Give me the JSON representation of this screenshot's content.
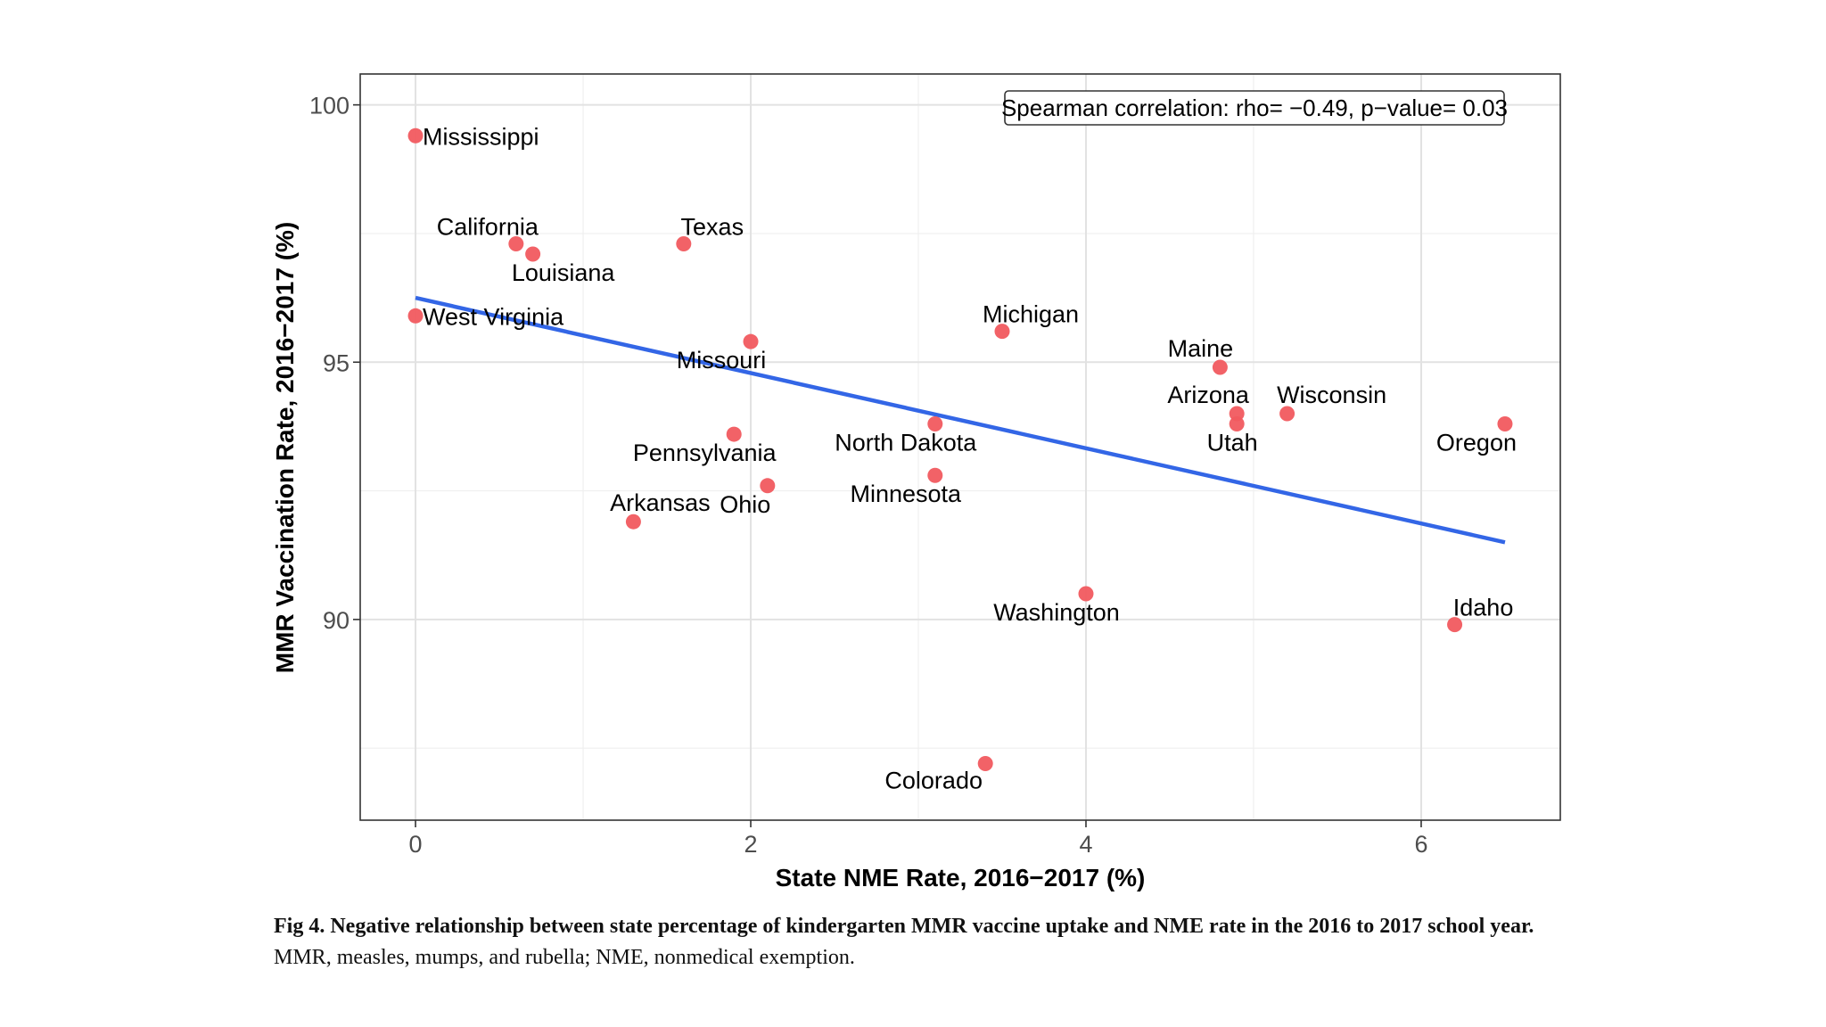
{
  "chart_data": {
    "type": "scatter",
    "xlabel": "State NME Rate, 2016−2017 (%)",
    "ylabel": "MMR Vaccination Rate, 2016−2017 (%)",
    "xlim": [
      -0.33,
      6.83
    ],
    "ylim": [
      86.1,
      100.6
    ],
    "x_ticks": [
      0,
      2,
      4,
      6
    ],
    "x_tick_labels": [
      "0",
      "2",
      "4",
      "6"
    ],
    "y_ticks": [
      90,
      95,
      100
    ],
    "y_tick_labels": [
      "90",
      "95",
      "100"
    ],
    "minor_y_gridlines": [
      87.5,
      92.5,
      97.5
    ],
    "minor_x_gridlines": [
      1,
      3,
      5
    ],
    "grid": true,
    "annotation": "Spearman correlation: rho= −0.49, p−value= 0.03",
    "annotation_position": "top-right",
    "point_color": "#f15a5f",
    "line_color": "#3366e6",
    "points": [
      {
        "name": "Mississippi",
        "x": 0.0,
        "y": 99.4
      },
      {
        "name": "California",
        "x": 0.6,
        "y": 97.3
      },
      {
        "name": "Louisiana",
        "x": 0.7,
        "y": 97.1
      },
      {
        "name": "Texas",
        "x": 1.6,
        "y": 97.3
      },
      {
        "name": "West Virginia",
        "x": 0.0,
        "y": 95.9
      },
      {
        "name": "Missouri",
        "x": 2.0,
        "y": 95.4
      },
      {
        "name": "Michigan",
        "x": 3.5,
        "y": 95.6
      },
      {
        "name": "Maine",
        "x": 4.8,
        "y": 94.9
      },
      {
        "name": "Arizona",
        "x": 4.9,
        "y": 94.0
      },
      {
        "name": "Wisconsin",
        "x": 5.2,
        "y": 94.0
      },
      {
        "name": "Utah",
        "x": 4.9,
        "y": 93.8
      },
      {
        "name": "Oregon",
        "x": 6.5,
        "y": 93.8
      },
      {
        "name": "North Dakota",
        "x": 3.1,
        "y": 93.8
      },
      {
        "name": "Pennsylvania",
        "x": 1.9,
        "y": 93.6
      },
      {
        "name": "Minnesota",
        "x": 3.1,
        "y": 92.8
      },
      {
        "name": "Ohio",
        "x": 2.1,
        "y": 92.6
      },
      {
        "name": "Arkansas",
        "x": 1.3,
        "y": 91.9
      },
      {
        "name": "Washington",
        "x": 4.0,
        "y": 90.5
      },
      {
        "name": "Idaho",
        "x": 6.2,
        "y": 89.9
      },
      {
        "name": "Colorado",
        "x": 3.4,
        "y": 87.2
      }
    ],
    "trend_line": {
      "x": [
        0.0,
        6.5
      ],
      "y": [
        96.25,
        91.5
      ]
    }
  },
  "caption": {
    "title": "Fig 4.  Negative relationship between state percentage of kindergarten MMR vaccine uptake and NME rate in the 2016 to 2017 school year.",
    "body": "MMR, measles, mumps, and rubella; NME, nonmedical exemption."
  }
}
